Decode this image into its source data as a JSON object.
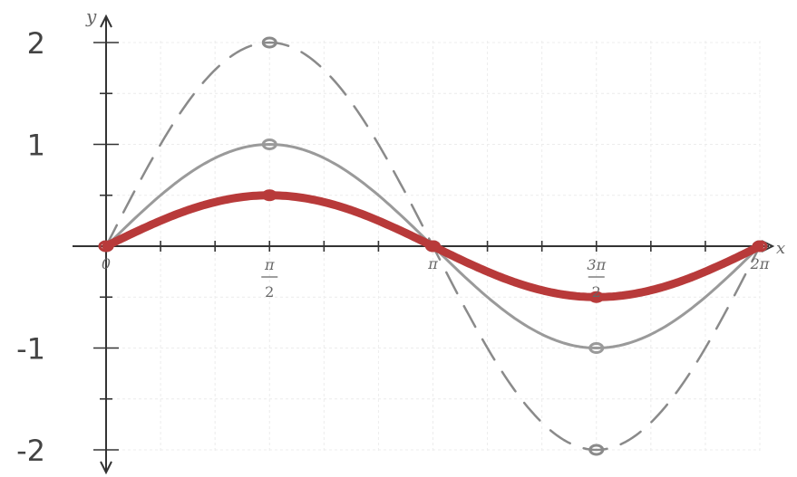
{
  "chart_data": {
    "type": "line",
    "xlim": [
      0,
      6.2832
    ],
    "ylim": [
      -2,
      2
    ],
    "grid": true,
    "axis_label_x": "x",
    "axis_label_y": "y",
    "x_ticks": [
      {
        "value": 0,
        "num": "0",
        "den": ""
      },
      {
        "value": 1.5708,
        "num": "π",
        "den": "2"
      },
      {
        "value": 3.1416,
        "num": "π",
        "den": ""
      },
      {
        "value": 4.7124,
        "num": "3π",
        "den": "2"
      },
      {
        "value": 6.2832,
        "num": "2π",
        "den": ""
      }
    ],
    "y_labels": [
      {
        "value": 2,
        "text": "2"
      },
      {
        "value": 1,
        "text": "1"
      },
      {
        "value": -1,
        "text": "-1"
      },
      {
        "value": -2,
        "text": "-2"
      }
    ],
    "series": [
      {
        "amplitude": 2,
        "color": "#8a8a8a",
        "style": "dashed",
        "points": [
          [
            0,
            0
          ],
          [
            1.5708,
            2
          ],
          [
            3.1416,
            0
          ],
          [
            4.7124,
            -2
          ],
          [
            6.2832,
            0
          ]
        ]
      },
      {
        "amplitude": 1,
        "color": "#9a9a9a",
        "style": "solid",
        "points": [
          [
            0,
            0
          ],
          [
            1.5708,
            1
          ],
          [
            3.1416,
            0
          ],
          [
            4.7124,
            -1
          ],
          [
            6.2832,
            0
          ]
        ]
      },
      {
        "amplitude": 0.5,
        "color": "#b83a3a",
        "style": "thick",
        "points": [
          [
            0,
            0
          ],
          [
            1.5708,
            0.5
          ],
          [
            3.1416,
            0
          ],
          [
            4.7124,
            -0.5
          ],
          [
            6.2832,
            0
          ]
        ]
      }
    ]
  }
}
